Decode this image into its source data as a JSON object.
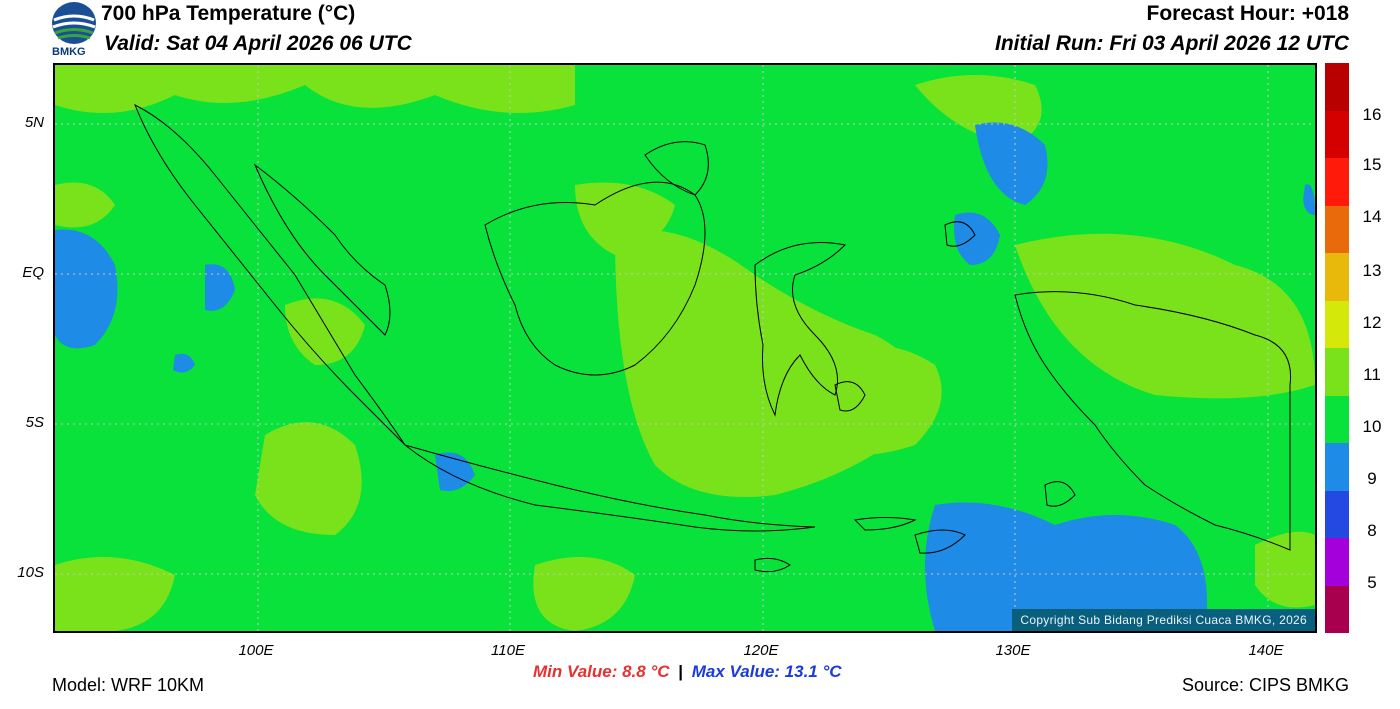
{
  "header": {
    "title": "700 hPa Temperature (°C)",
    "valid": "Valid: Sat 04 April 2026 06 UTC",
    "forecast_hour": "Forecast Hour: +018",
    "initial_run": "Initial Run: Fri 03 April 2026 12 UTC",
    "logo_text": "BMKG"
  },
  "map": {
    "lat_labels": [
      "5N",
      "EQ",
      "5S",
      "10S"
    ],
    "lon_labels": [
      "100E",
      "110E",
      "120E",
      "130E",
      "140E"
    ],
    "copyright": "Copyright Sub Bidang Prediksi Cuaca BMKG, 2026",
    "colors": {
      "c9": "#1e8be6",
      "c10": "#08e23a",
      "c11": "#7ae21a",
      "c12": "#d4e80a"
    }
  },
  "colorbar": {
    "labels": [
      "16",
      "15",
      "14",
      "13",
      "12",
      "11",
      "10",
      "9",
      "8",
      "5"
    ],
    "colors": [
      "#a8004e",
      "#a400dc",
      "#2448e2",
      "#1e8be6",
      "#08e23a",
      "#7ae21a",
      "#d4e80a",
      "#e8b80a",
      "#e86a0a",
      "#ff1a0a",
      "#d40000",
      "#b80000"
    ]
  },
  "footer": {
    "model": "Model: WRF 10KM",
    "min_value": "Min Value: 8.8 °C",
    "separator": "|",
    "max_value": "Max Value: 13.1 °C",
    "source": "Source: CIPS BMKG"
  }
}
